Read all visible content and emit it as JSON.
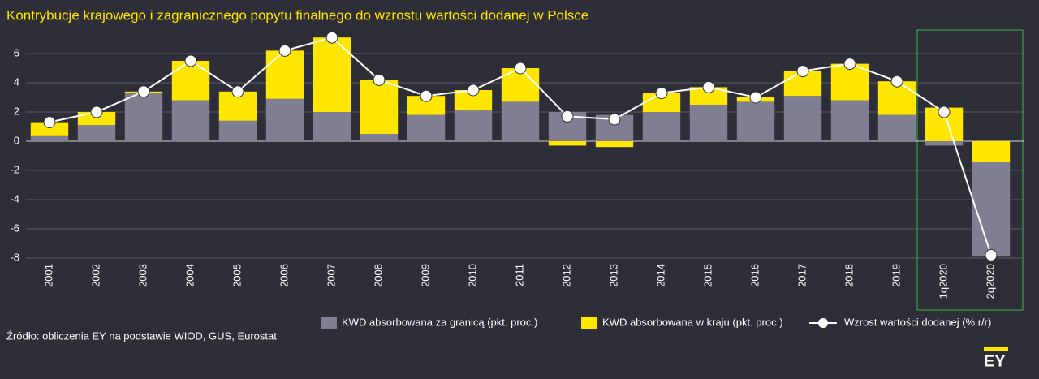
{
  "chart_data": {
    "type": "stacked-bar-line",
    "title": "Kontrybucje krajowego i zagranicznego popytu finalnego do wzrostu wartości dodanej w Polsce",
    "source": "Źródło: obliczenia EY na podstawie WIOD, GUS, Eurostat",
    "logo": "EY",
    "categories": [
      "2001",
      "2002",
      "2003",
      "2004",
      "2005",
      "2006",
      "2007",
      "2008",
      "2009",
      "2010",
      "2011",
      "2012",
      "2013",
      "2014",
      "2015",
      "2016",
      "2017",
      "2018",
      "2019",
      "1q2020",
      "2q2020"
    ],
    "series": [
      {
        "name": "KWD absorbowana za granicą (pkt. proc.)",
        "color": "#7f7e93",
        "kind": "bar",
        "values": [
          0.4,
          1.1,
          3.3,
          2.8,
          1.4,
          2.9,
          2.0,
          0.5,
          1.8,
          2.1,
          2.7,
          2.0,
          1.8,
          2.0,
          2.5,
          2.7,
          3.1,
          2.8,
          1.8,
          -0.3,
          -6.5
        ]
      },
      {
        "name": "KWD absorbowana w kraju (pkt. proc.)",
        "color": "#ffe600",
        "kind": "bar",
        "values": [
          0.9,
          0.9,
          0.1,
          2.7,
          2.0,
          3.3,
          5.1,
          3.7,
          1.3,
          1.4,
          2.3,
          -0.3,
          -0.4,
          1.3,
          1.2,
          0.3,
          1.7,
          2.5,
          2.3,
          2.3,
          -1.4
        ]
      },
      {
        "name": "Wzrost wartości dodanej (% r/r)",
        "color": "#ffffff",
        "kind": "line",
        "values": [
          1.3,
          2.0,
          3.4,
          5.5,
          3.4,
          6.2,
          7.1,
          4.2,
          3.1,
          3.5,
          5.0,
          1.7,
          1.5,
          3.3,
          3.7,
          3.0,
          4.8,
          5.3,
          4.1,
          2.0,
          -7.8
        ]
      }
    ],
    "ylim": [
      -8,
      7.5
    ],
    "yticks": [
      -8,
      -6,
      -4,
      -2,
      0,
      2,
      4,
      6
    ],
    "grid": true
  }
}
